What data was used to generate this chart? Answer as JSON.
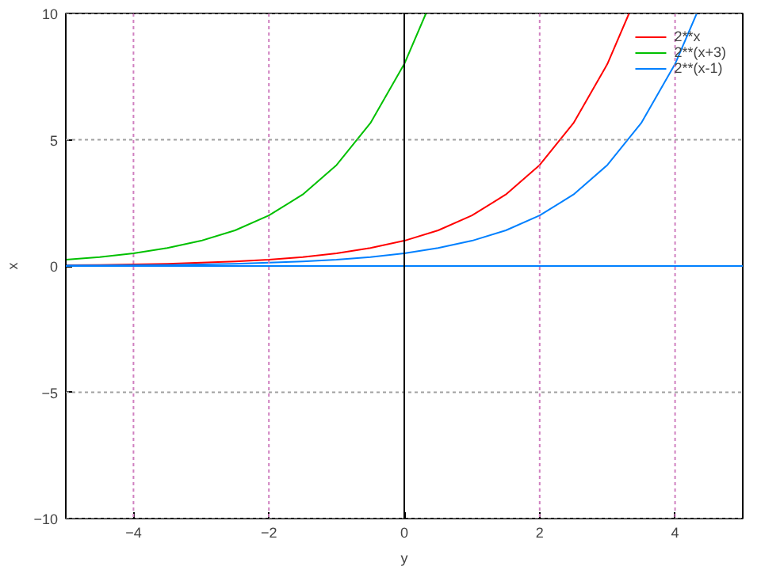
{
  "chart_data": {
    "type": "line",
    "xlabel": "y",
    "ylabel": "x",
    "xlim": [
      -5,
      5
    ],
    "ylim": [
      -10,
      10
    ],
    "xticks": [
      -4,
      -2,
      0,
      2,
      4
    ],
    "yticks": [
      -10,
      -5,
      0,
      5,
      10
    ],
    "grid": true,
    "legend": "top right",
    "marker": "none",
    "line_style": "solid",
    "series": [
      {
        "name": "2**x",
        "color": "#ff0000",
        "x": [
          -5,
          -4.5,
          -4,
          -3.5,
          -3,
          -2.5,
          -2,
          -1.5,
          -1,
          -0.5,
          0,
          0.5,
          1,
          1.5,
          2,
          2.5,
          3,
          3.32
        ],
        "values": [
          0.03,
          0.04,
          0.06,
          0.09,
          0.13,
          0.18,
          0.25,
          0.35,
          0.5,
          0.71,
          1,
          1.41,
          2,
          2.83,
          4,
          5.66,
          8,
          10
        ]
      },
      {
        "name": "2**(x+3)",
        "color": "#00c000",
        "x": [
          -5,
          -4.5,
          -4,
          -3.5,
          -3,
          -2.5,
          -2,
          -1.5,
          -1,
          -0.5,
          0,
          0.32
        ],
        "values": [
          0.25,
          0.35,
          0.5,
          0.71,
          1,
          1.41,
          2,
          2.83,
          4,
          5.66,
          8,
          10
        ]
      },
      {
        "name": "2**(x-1)",
        "color": "#0080ff",
        "x": [
          -5,
          -4.5,
          -4,
          -3.5,
          -3,
          -2.5,
          -2,
          -1.5,
          -1,
          -0.5,
          0,
          0.5,
          1,
          1.5,
          2,
          2.5,
          3,
          3.5,
          4,
          4.32
        ],
        "values": [
          0.02,
          0.02,
          0.03,
          0.04,
          0.06,
          0.09,
          0.13,
          0.18,
          0.25,
          0.35,
          0.5,
          0.71,
          1,
          1.41,
          2,
          2.83,
          4,
          5.66,
          8,
          10
        ]
      }
    ],
    "ref_lines": [
      {
        "axis": "y",
        "value": 0,
        "color": "#0080ff"
      },
      {
        "axis": "x",
        "value": 0,
        "color": "#000000"
      }
    ]
  }
}
